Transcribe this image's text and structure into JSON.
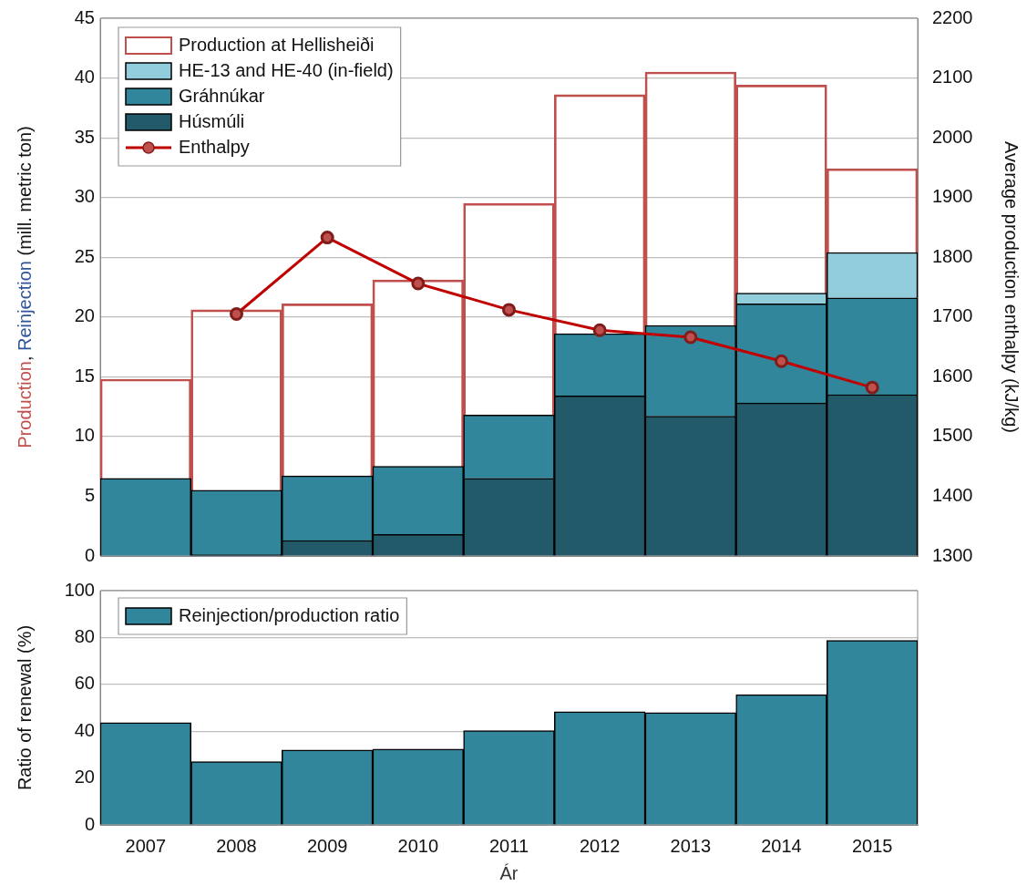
{
  "chart_data": [
    {
      "type": "bar",
      "categories": [
        "2007",
        "2008",
        "2009",
        "2010",
        "2011",
        "2012",
        "2013",
        "2014",
        "2015"
      ],
      "series": [
        {
          "name": "Production at Hellisheiði",
          "color": "#c0504d",
          "values": [
            14.8,
            20.6,
            21.1,
            23.1,
            29.5,
            38.6,
            40.5,
            39.4,
            32.4
          ]
        },
        {
          "name": "Húsmúli",
          "color": "#235a6a",
          "base": [
            0,
            0,
            0,
            0,
            0,
            0,
            0,
            0,
            0
          ],
          "values": [
            0,
            0.1,
            1.3,
            1.8,
            6.5,
            13.4,
            11.7,
            12.8,
            13.5
          ]
        },
        {
          "name": "Gráhnúkar",
          "color": "#31869b",
          "base": [
            0,
            0.1,
            1.3,
            1.8,
            6.5,
            13.4,
            11.7,
            12.8,
            13.5
          ],
          "values": [
            6.5,
            5.4,
            5.4,
            5.7,
            5.3,
            5.2,
            7.6,
            8.3,
            8.1
          ]
        },
        {
          "name": "HE-13 and HE-40 (in-field)",
          "color": "#92cddc",
          "base": [
            null,
            null,
            null,
            null,
            null,
            null,
            null,
            21.1,
            21.6
          ],
          "values": [
            null,
            null,
            null,
            null,
            null,
            null,
            null,
            0.9,
            3.8
          ]
        },
        {
          "name": "Enthalpy",
          "type": "line",
          "axis": "y2",
          "color": "#c00000",
          "values": [
            null,
            1705,
            1833,
            1756,
            1712,
            1678,
            1666,
            1626,
            1582
          ]
        }
      ],
      "ylim": [
        0,
        45
      ],
      "yticks": [
        0,
        5,
        10,
        15,
        20,
        25,
        30,
        35,
        40,
        45
      ],
      "y2lim": [
        1300,
        2200
      ],
      "y2ticks": [
        1300,
        1400,
        1500,
        1600,
        1700,
        1800,
        1900,
        2000,
        2100,
        2200
      ],
      "ylabel": "Production, Reinjection (mill. metric ton)",
      "y2label": "Average production enthalpy (kJ/kg)",
      "grid": "y",
      "legend": "top left",
      "marker": "circle",
      "tick_labels": "y"
    },
    {
      "type": "bar",
      "categories": [
        "2007",
        "2008",
        "2009",
        "2010",
        "2011",
        "2012",
        "2013",
        "2014",
        "2015"
      ],
      "series": [
        {
          "name": "Reinjection/production ratio",
          "color": "#31869b",
          "values": [
            43.6,
            27,
            32,
            32.4,
            40.2,
            48.3,
            47.9,
            55.6,
            78.8
          ]
        }
      ],
      "ylim": [
        0,
        100
      ],
      "yticks": [
        0,
        20,
        40,
        60,
        80,
        100
      ],
      "ylabel": "Ratio of renewal (%)",
      "xlabel": "Ár",
      "grid": "y",
      "legend": "top left"
    }
  ]
}
